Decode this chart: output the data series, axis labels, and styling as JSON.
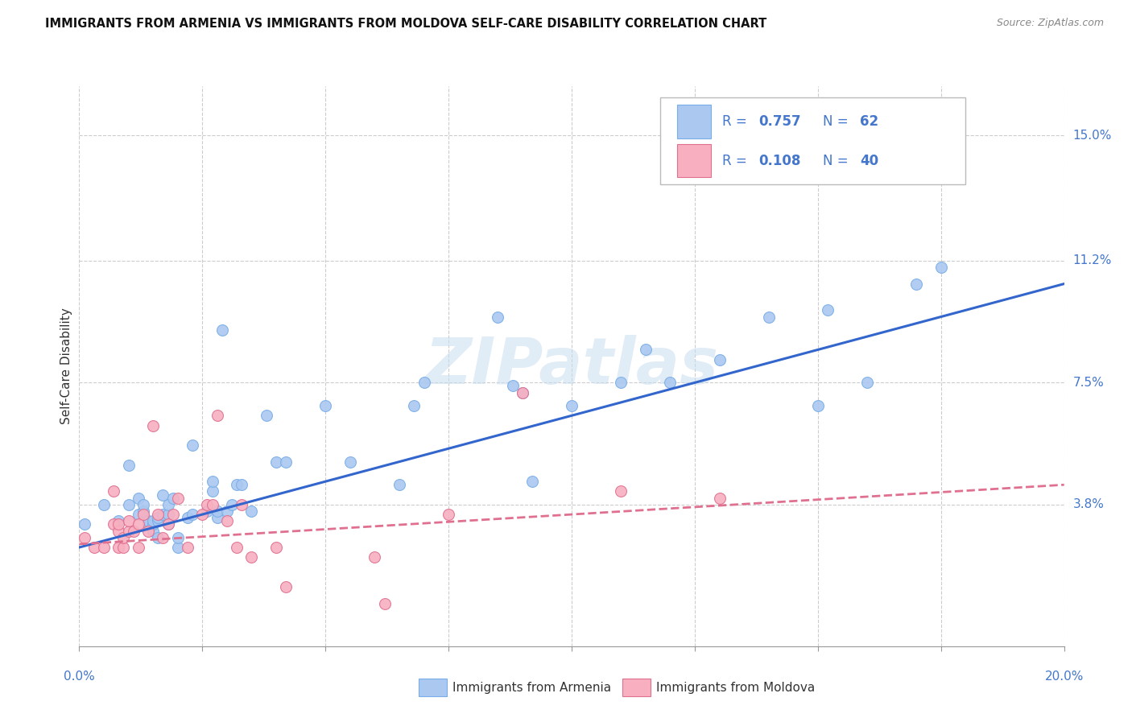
{
  "title": "IMMIGRANTS FROM ARMENIA VS IMMIGRANTS FROM MOLDOVA SELF-CARE DISABILITY CORRELATION CHART",
  "source": "Source: ZipAtlas.com",
  "ylabel": "Self-Care Disability",
  "ytick_labels": [
    "15.0%",
    "11.2%",
    "7.5%",
    "3.8%"
  ],
  "ytick_values": [
    0.15,
    0.112,
    0.075,
    0.038
  ],
  "xmin": 0.0,
  "xmax": 0.2,
  "ymin": -0.005,
  "ymax": 0.165,
  "armenia_R": "0.757",
  "armenia_N": "62",
  "moldova_R": "0.108",
  "moldova_N": "40",
  "armenia_color": "#aac8f0",
  "armenia_edge": "#7aaee8",
  "moldova_color": "#f8b0c0",
  "moldova_edge": "#e07090",
  "armenia_line_color": "#3366cc",
  "moldova_line_color": "#e07090",
  "label_color": "#4477cc",
  "watermark": "ZIPatlas",
  "armenia_scatter_x": [
    0.001,
    0.005,
    0.008,
    0.01,
    0.01,
    0.012,
    0.012,
    0.013,
    0.013,
    0.014,
    0.014,
    0.015,
    0.015,
    0.015,
    0.016,
    0.016,
    0.016,
    0.017,
    0.017,
    0.018,
    0.018,
    0.018,
    0.019,
    0.02,
    0.02,
    0.022,
    0.023,
    0.023,
    0.026,
    0.027,
    0.027,
    0.028,
    0.028,
    0.029,
    0.03,
    0.031,
    0.032,
    0.033,
    0.035,
    0.038,
    0.04,
    0.042,
    0.05,
    0.055,
    0.065,
    0.068,
    0.07,
    0.085,
    0.088,
    0.09,
    0.092,
    0.1,
    0.11,
    0.115,
    0.12,
    0.13,
    0.14,
    0.15,
    0.152,
    0.16,
    0.17,
    0.175
  ],
  "armenia_scatter_y": [
    0.032,
    0.038,
    0.033,
    0.038,
    0.05,
    0.035,
    0.04,
    0.036,
    0.038,
    0.032,
    0.033,
    0.03,
    0.032,
    0.033,
    0.028,
    0.033,
    0.034,
    0.035,
    0.041,
    0.032,
    0.035,
    0.038,
    0.04,
    0.025,
    0.028,
    0.034,
    0.035,
    0.056,
    0.036,
    0.042,
    0.045,
    0.034,
    0.036,
    0.091,
    0.036,
    0.038,
    0.044,
    0.044,
    0.036,
    0.065,
    0.051,
    0.051,
    0.068,
    0.051,
    0.044,
    0.068,
    0.075,
    0.095,
    0.074,
    0.072,
    0.045,
    0.068,
    0.075,
    0.085,
    0.075,
    0.082,
    0.095,
    0.068,
    0.097,
    0.075,
    0.105,
    0.11
  ],
  "moldova_scatter_x": [
    0.001,
    0.003,
    0.005,
    0.007,
    0.007,
    0.008,
    0.008,
    0.008,
    0.009,
    0.009,
    0.01,
    0.01,
    0.011,
    0.012,
    0.012,
    0.013,
    0.014,
    0.015,
    0.016,
    0.017,
    0.018,
    0.019,
    0.02,
    0.022,
    0.025,
    0.026,
    0.027,
    0.028,
    0.03,
    0.032,
    0.033,
    0.035,
    0.04,
    0.042,
    0.06,
    0.062,
    0.075,
    0.09,
    0.11,
    0.13
  ],
  "moldova_scatter_y": [
    0.028,
    0.025,
    0.025,
    0.032,
    0.042,
    0.025,
    0.03,
    0.032,
    0.025,
    0.028,
    0.03,
    0.033,
    0.03,
    0.025,
    0.032,
    0.035,
    0.03,
    0.062,
    0.035,
    0.028,
    0.032,
    0.035,
    0.04,
    0.025,
    0.035,
    0.038,
    0.038,
    0.065,
    0.033,
    0.025,
    0.038,
    0.022,
    0.025,
    0.013,
    0.022,
    0.008,
    0.035,
    0.072,
    0.042,
    0.04
  ],
  "armenia_trend_x": [
    0.0,
    0.2
  ],
  "armenia_trend_y": [
    0.025,
    0.105
  ],
  "moldova_trend_x": [
    0.0,
    0.2
  ],
  "moldova_trend_y": [
    0.026,
    0.044
  ]
}
